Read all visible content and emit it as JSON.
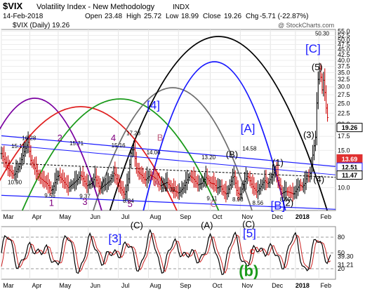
{
  "header": {
    "symbol": "$VIX",
    "name": "Volatility Index - New Methodology",
    "exchange": "INDX",
    "date": "14-Feb-2018",
    "open_label": "Open",
    "open": "23.48",
    "high_label": "High",
    "high": "25.72",
    "low_label": "Low",
    "low": "18.99",
    "close_label": "Close",
    "close": "19.26",
    "chg_label": "Chg",
    "chg": "-5.71 (-22.87%)",
    "watermark": "@ StockCharts.com",
    "legend": "$VIX (Daily) 19.26"
  },
  "chart_data": [
    {
      "type": "bar",
      "subtype": "ohlc",
      "series_name": "$VIX (Daily)",
      "log_scale": true,
      "ylim": [
        7.8,
        56
      ],
      "y_ticks": [
        10.0,
        12.5,
        15.0,
        17.5,
        20.0,
        22.5,
        25.0,
        27.5,
        30.0,
        32.5,
        35.0,
        37.5,
        40.0,
        42.5,
        45.0,
        47.5,
        50.0,
        52.5,
        55.0
      ],
      "x_labels": [
        "Mar",
        "Apr",
        "May",
        "Jun",
        "Jul",
        "Aug",
        "Sep",
        "Oct",
        "Nov",
        "Dec",
        "2018",
        "Feb"
      ],
      "price_path": [
        [
          0,
          14.5
        ],
        [
          8,
          12.3
        ],
        [
          15,
          11.4
        ],
        [
          22,
          12.8
        ],
        [
          28,
          15.1
        ],
        [
          32,
          16.4
        ],
        [
          35,
          13.5
        ],
        [
          45,
          11.2
        ],
        [
          55,
          10.4
        ],
        [
          60,
          9.6
        ],
        [
          68,
          11.5
        ],
        [
          75,
          10.6
        ],
        [
          80,
          10.0
        ],
        [
          90,
          10.8
        ],
        [
          95,
          11.5
        ],
        [
          102,
          10.2
        ],
        [
          108,
          10.5
        ],
        [
          112,
          11.2
        ],
        [
          118,
          9.9
        ],
        [
          125,
          10.4
        ],
        [
          130,
          10.8
        ],
        [
          135,
          11.8
        ],
        [
          140,
          10.3
        ],
        [
          148,
          9.2
        ],
        [
          152,
          11.0
        ],
        [
          155,
          14.5
        ],
        [
          158,
          15.5
        ],
        [
          162,
          12.0
        ],
        [
          168,
          11.4
        ],
        [
          172,
          10.8
        ],
        [
          178,
          11.5
        ],
        [
          185,
          11.0
        ],
        [
          190,
          10.2
        ],
        [
          198,
          10.6
        ],
        [
          205,
          9.8
        ],
        [
          212,
          9.4
        ],
        [
          218,
          10.0
        ],
        [
          225,
          11.4
        ],
        [
          230,
          11.0
        ],
        [
          235,
          10.3
        ],
        [
          240,
          10.5
        ],
        [
          245,
          11.2
        ],
        [
          250,
          10.5
        ],
        [
          255,
          10.4
        ],
        [
          258,
          9.9
        ],
        [
          262,
          10.2
        ],
        [
          266,
          9.5
        ],
        [
          270,
          9.3
        ],
        [
          274,
          10.4
        ],
        [
          278,
          11.5
        ],
        [
          282,
          9.5
        ],
        [
          286,
          9.2
        ],
        [
          290,
          10.5
        ],
        [
          295,
          11.4
        ],
        [
          300,
          10.2
        ],
        [
          306,
          9.5
        ],
        [
          311,
          10.2
        ],
        [
          315,
          10.8
        ],
        [
          319,
          10.4
        ],
        [
          323,
          11.2
        ],
        [
          328,
          12.0
        ],
        [
          332,
          10.5
        ],
        [
          336,
          9.4
        ],
        [
          340,
          9.6
        ],
        [
          345,
          9.5
        ],
        [
          350,
          9.3
        ],
        [
          354,
          9.9
        ],
        [
          357,
          10.3
        ],
        [
          360,
          10.1
        ],
        [
          363,
          10.4
        ],
        [
          366,
          11.4
        ],
        [
          369,
          11.2
        ],
        [
          372,
          13.5
        ],
        [
          376,
          17.3
        ],
        [
          379,
          32
        ],
        [
          381,
          37
        ],
        [
          384,
          29
        ],
        [
          386,
          33
        ],
        [
          388,
          25
        ],
        [
          390,
          22
        ],
        [
          392,
          19.3
        ]
      ],
      "markers": [
        {
          "text": "15.11",
          "x": 20,
          "y": 15.4
        },
        {
          "text": "16.28",
          "x": 33,
          "y": 16.8
        },
        {
          "text": "15.71",
          "x": 90,
          "y": 15.9
        },
        {
          "text": "15.16",
          "x": 140,
          "y": 15.5
        },
        {
          "text": "17.28",
          "x": 158,
          "y": 17.7
        },
        {
          "text": "14.06",
          "x": 182,
          "y": 14.4
        },
        {
          "text": "13.20",
          "x": 248,
          "y": 13.6
        },
        {
          "text": "14.58",
          "x": 297,
          "y": 15.0
        },
        {
          "text": "50.30",
          "x": 384,
          "y": 52.5
        },
        {
          "text": "10.90",
          "x": 16,
          "y": 10.4
        },
        {
          "text": "9.56",
          "x": 58,
          "y": 9.0
        },
        {
          "text": "9.37",
          "x": 100,
          "y": 8.9
        },
        {
          "text": "8.84",
          "x": 152,
          "y": 8.5
        },
        {
          "text": "10.02",
          "x": 200,
          "y": 9.6
        },
        {
          "text": "9.11",
          "x": 252,
          "y": 8.7
        },
        {
          "text": "8.93",
          "x": 283,
          "y": 8.6
        },
        {
          "text": "8.56",
          "x": 307,
          "y": 8.3
        },
        {
          "text": "8.99",
          "x": 340,
          "y": 8.6
        }
      ],
      "wave_labels": [
        {
          "text": "1",
          "x": 60,
          "y": 8.2,
          "color": "#800080"
        },
        {
          "text": "2",
          "x": 70,
          "y": 16.6,
          "color": "#800080"
        },
        {
          "text": "3",
          "x": 100,
          "y": 8.3,
          "color": "#800080"
        },
        {
          "text": "4",
          "x": 134,
          "y": 16.6,
          "color": "#800080"
        },
        {
          "text": "5",
          "x": 154,
          "y": 8.1,
          "color": "#800080"
        },
        {
          "text": "A",
          "x": 186,
          "y": 10.2,
          "color": "#c06080"
        },
        {
          "text": "B",
          "x": 190,
          "y": 16.7,
          "color": "#c06080"
        },
        {
          "text": "C",
          "x": 254,
          "y": 8.1,
          "color": "#c06080"
        },
        {
          "text": "[4]",
          "x": 182,
          "y": 23.5,
          "color": "#1a1aff"
        },
        {
          "text": "[A]",
          "x": 295,
          "y": 18.3,
          "color": "#1a1aff"
        },
        {
          "text": "(B)",
          "x": 276,
          "y": 13.9,
          "color": "#000000"
        },
        {
          "text": "(1)",
          "x": 331,
          "y": 12.7,
          "color": "#000000"
        },
        {
          "text": "(3)",
          "x": 368,
          "y": 17.2,
          "color": "#000000"
        },
        {
          "text": "(4)",
          "x": 380,
          "y": 10.6,
          "color": "#000000"
        },
        {
          "text": "(2)",
          "x": 343,
          "y": 8.2,
          "color": "#000000"
        },
        {
          "text": "[B]",
          "x": 331,
          "y": 7.9,
          "color": "#1a1aff"
        },
        {
          "text": "(5)",
          "x": 378,
          "y": 36,
          "color": "#000000"
        },
        {
          "text": "[C]",
          "x": 373,
          "y": 43.5,
          "color": "#1a1aff"
        }
      ],
      "price_boxes": [
        {
          "text": "19.26",
          "y": 19.26,
          "bg": "#ffffff",
          "fg": "#000000",
          "border": "#000000"
        },
        {
          "text": "13.69",
          "y": 13.69,
          "bg": "#e03030",
          "fg": "#ffffff",
          "border": "#e03030"
        },
        {
          "text": "12.51",
          "y": 12.51,
          "bg": "#ffffff",
          "fg": "#000000",
          "border": "#1a1aff"
        },
        {
          "text": "11.47",
          "y": 11.47,
          "bg": "#ffffff",
          "fg": "#000000",
          "border": "#000000"
        }
      ]
    },
    {
      "type": "line",
      "series_name": "Oscillator",
      "ylim": [
        0,
        100
      ],
      "y_ticks": [
        20,
        50,
        80
      ],
      "right_labels": [
        "39.30",
        "31.21"
      ],
      "x_labels": [
        "Mar",
        "Apr",
        "May",
        "Jun",
        "Jul",
        "Aug",
        "Sep",
        "Oct",
        "Nov",
        "Dec",
        "2018",
        "Feb"
      ],
      "wave_labels": [
        {
          "text": "(C)",
          "x": 162,
          "y": 97,
          "color": "#000000"
        },
        {
          "text": "(A)",
          "x": 246,
          "y": 97,
          "color": "#000000"
        },
        {
          "text": "(C)",
          "x": 296,
          "y": 99,
          "color": "#000000"
        },
        {
          "text": "[3]",
          "x": 136,
          "y": 70,
          "color": "#1a1aff"
        },
        {
          "text": "[5]",
          "x": 297,
          "y": 80,
          "color": "#1a1aff"
        },
        {
          "text": "c",
          "x": 300,
          "y": 48,
          "color": "#e00000"
        },
        {
          "text": "(b)",
          "x": 296,
          "y": 6,
          "color": "#1a9a1a"
        }
      ]
    }
  ]
}
